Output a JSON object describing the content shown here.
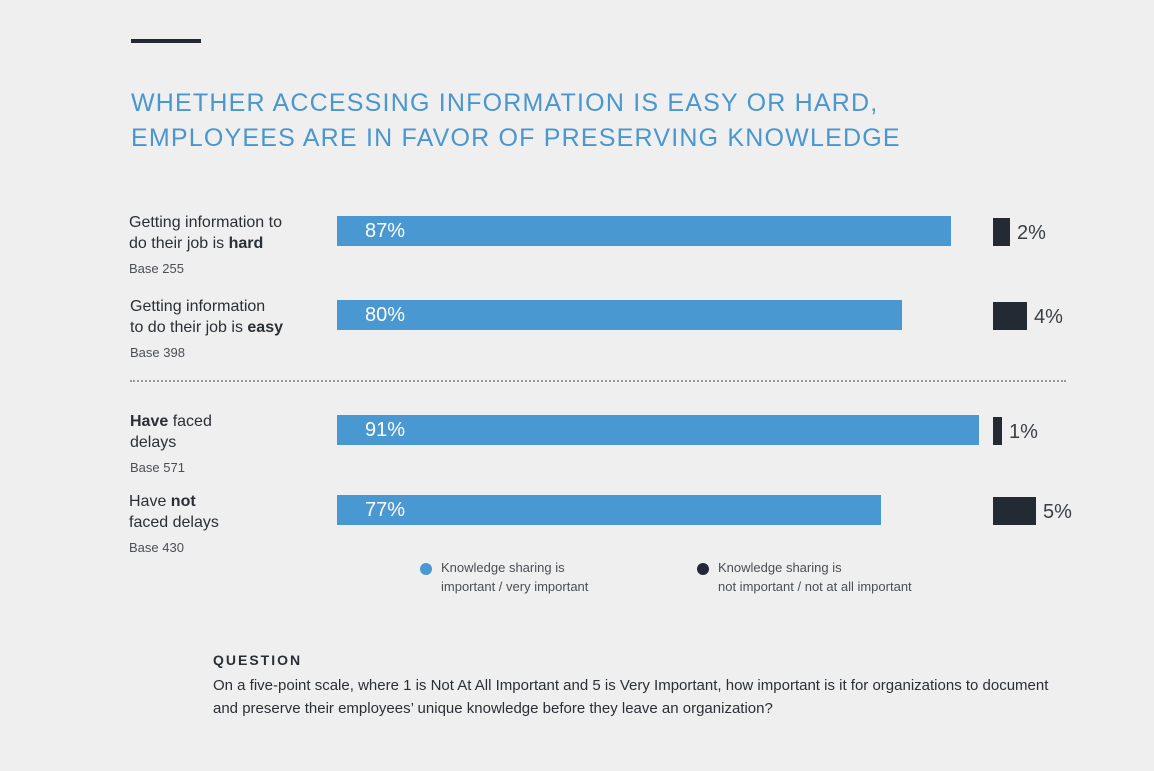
{
  "chart_data": {
    "type": "bar",
    "title_lines": [
      "WHETHER ACCESSING INFORMATION IS EASY OR HARD,",
      "EMPLOYEES ARE IN FAVOR OF PRESERVING KNOWLEDGE"
    ],
    "categories": [
      {
        "parts": [
          [
            {
              "t": "Getting information to",
              "b": false
            }
          ],
          [
            {
              "t": "do their job is ",
              "b": false
            },
            {
              "t": "hard",
              "b": true
            }
          ]
        ],
        "base": "Base 255"
      },
      {
        "parts": [
          [
            {
              "t": "Getting information",
              "b": false
            }
          ],
          [
            {
              "t": "to do their job is ",
              "b": false
            },
            {
              "t": "easy",
              "b": true
            }
          ]
        ],
        "base": "Base 398"
      },
      {
        "parts": [
          [
            {
              "t": "Have",
              "b": true
            },
            {
              "t": " faced",
              "b": false
            }
          ],
          [
            {
              "t": "delays",
              "b": false
            }
          ]
        ],
        "base": "Base 571"
      },
      {
        "parts": [
          [
            {
              "t": "Have ",
              "b": false
            },
            {
              "t": "not",
              "b": true
            }
          ],
          [
            {
              "t": "faced delays",
              "b": false
            }
          ]
        ],
        "base": "Base 430"
      }
    ],
    "series": [
      {
        "name": "Knowledge sharing is important / very important",
        "legend_lines": [
          "Knowledge sharing is",
          "important / very important"
        ],
        "color": "#4a98d2",
        "values": [
          87,
          80,
          91,
          77
        ],
        "labels": [
          "87%",
          "80%",
          "91%",
          "77%"
        ]
      },
      {
        "name": "Knowledge sharing is not important / not at all important",
        "legend_lines": [
          "Knowledge sharing is",
          "not important / not at all important"
        ],
        "color": "#232a33",
        "values": [
          2,
          4,
          1,
          5
        ],
        "labels": [
          "2%",
          "4%",
          "1%",
          "5%"
        ]
      }
    ],
    "group_divider_after": 1
  },
  "question": {
    "heading": "QUESTION",
    "text": "On a five-point scale, where 1 is Not At All Important and 5 is Very Important, how important is it for organizations to document and preserve their employees’ unique knowledge before they leave an organization?"
  }
}
